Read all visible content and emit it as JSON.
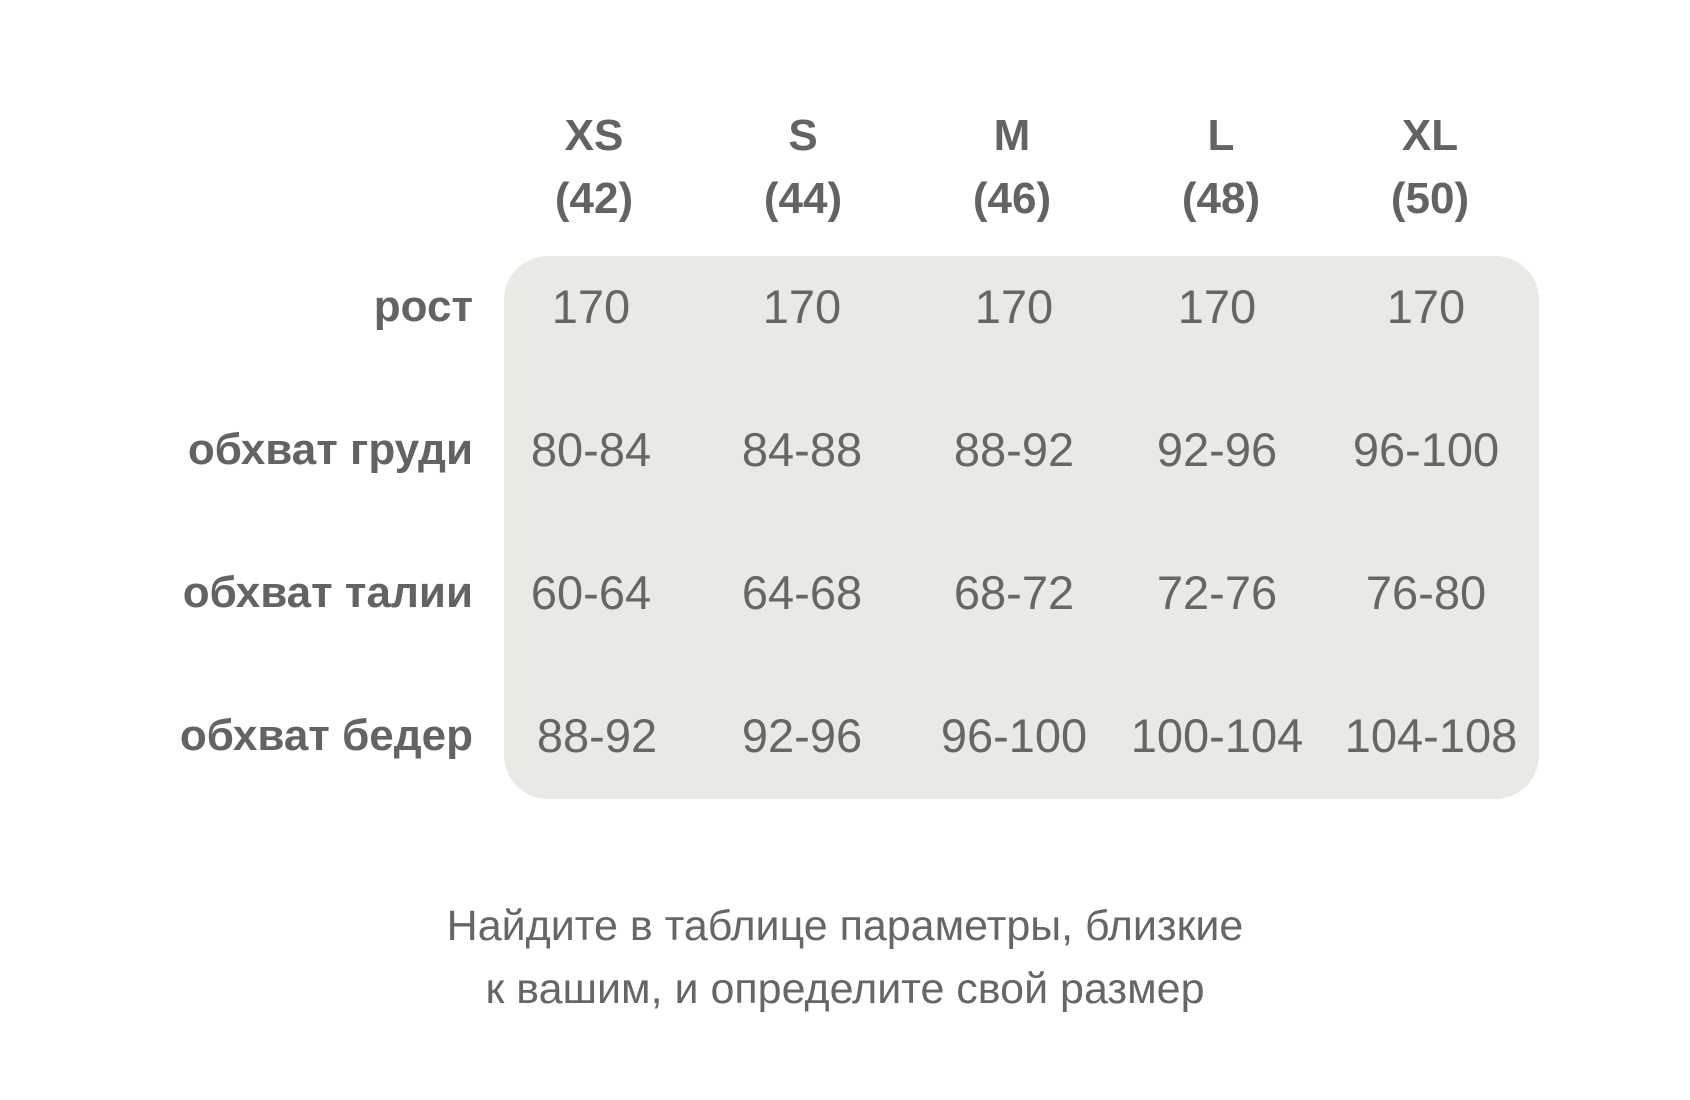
{
  "sizes": [
    {
      "label": "XS",
      "ru": "(42)"
    },
    {
      "label": "S",
      "ru": "(44)"
    },
    {
      "label": "M",
      "ru": "(46)"
    },
    {
      "label": "L",
      "ru": "(48)"
    },
    {
      "label": "XL",
      "ru": "(50)"
    }
  ],
  "rows": [
    {
      "label": "рост",
      "values": [
        "170",
        "170",
        "170",
        "170",
        "170"
      ]
    },
    {
      "label": "обхват груди",
      "values": [
        "80-84",
        "84-88",
        "88-92",
        "92-96",
        "96-100"
      ]
    },
    {
      "label": "обхват талии",
      "values": [
        "60-64",
        "64-68",
        "68-72",
        "72-76",
        "76-80"
      ]
    },
    {
      "label": "обхват бедер",
      "values": [
        "88-92",
        "92-96",
        "96-100",
        "100-104",
        "104-108"
      ]
    }
  ],
  "note": {
    "line1": "Найдите в таблице параметры, близкие",
    "line2": "к вашим, и определите свой размер"
  },
  "colors": {
    "panel": "#e8eae3",
    "text": "#666666",
    "heading": "#636363"
  }
}
